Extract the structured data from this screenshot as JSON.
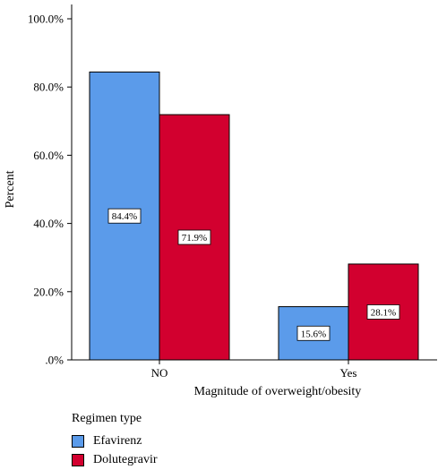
{
  "chart_data": {
    "type": "bar",
    "xlabel": "Magnitude of overweight/obesity",
    "ylabel": "Percent",
    "ylim": [
      0,
      100
    ],
    "yticks": [
      0,
      20,
      40,
      60,
      80,
      100
    ],
    "ytick_labels": [
      ".0%",
      "20.0%",
      "40.0%",
      "60.0%",
      "80.0%",
      "100.0%"
    ],
    "categories": [
      "NO",
      "Yes"
    ],
    "series": [
      {
        "name": "Efavirenz",
        "color": "#5b9bea",
        "values": [
          84.4,
          15.6
        ],
        "labels": [
          "84.4%",
          "15.6%"
        ]
      },
      {
        "name": "Dolutegravir",
        "color": "#d2002f",
        "values": [
          71.9,
          28.1
        ],
        "labels": [
          "71.9%",
          "28.1%"
        ]
      }
    ],
    "legend_title": "Regimen type",
    "legend_position": "bottom-left",
    "grid": false
  }
}
